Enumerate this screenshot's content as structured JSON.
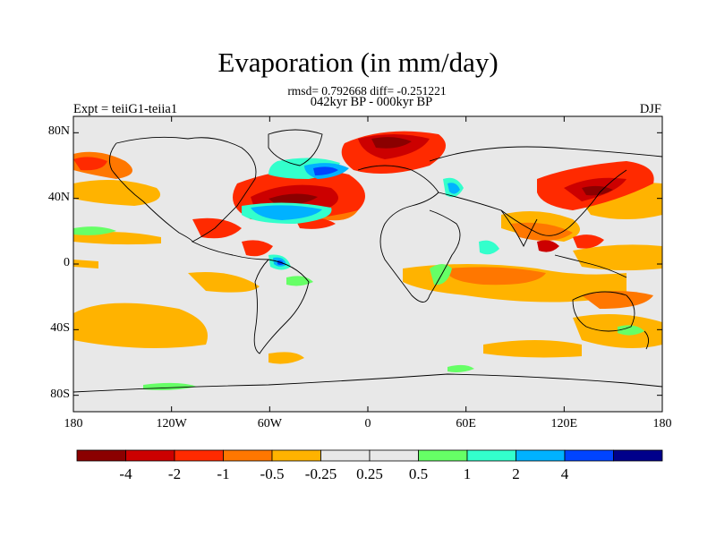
{
  "title": "Evaporation (in mm/day)",
  "subtitle_stats": "rmsd= 0.792668 diff= -0.251221",
  "subtitle_period": "042kyr BP - 000kyr BP",
  "left_label": "Expt = teiiG1-teiia1",
  "right_label": "DJF",
  "lat_ticks": [
    {
      "value": 80,
      "label": "80N"
    },
    {
      "value": 40,
      "label": "40N"
    },
    {
      "value": 0,
      "label": "0"
    },
    {
      "value": -40,
      "label": "40S"
    },
    {
      "value": -80,
      "label": "80S"
    }
  ],
  "lon_ticks": [
    {
      "value": -180,
      "label": "180"
    },
    {
      "value": -120,
      "label": "120W"
    },
    {
      "value": -60,
      "label": "60W"
    },
    {
      "value": 0,
      "label": "0"
    },
    {
      "value": 60,
      "label": "60E"
    },
    {
      "value": 120,
      "label": "120E"
    },
    {
      "value": 180,
      "label": "180"
    }
  ],
  "colorbar": {
    "colors": [
      "#8B0000",
      "#CC0000",
      "#FF2A00",
      "#FF7700",
      "#FFB300",
      "#E8E8E8",
      "#E8E8E8",
      "#66FF66",
      "#33FFCC",
      "#00B2FF",
      "#0044FF",
      "#00008B"
    ],
    "labels": [
      "-4",
      "-2",
      "-1",
      "-0.5",
      "-0.25",
      "0.25",
      "0.5",
      "1",
      "2",
      "4"
    ]
  },
  "colors": {
    "background": "#E8E8E8",
    "coast": "#000000"
  }
}
